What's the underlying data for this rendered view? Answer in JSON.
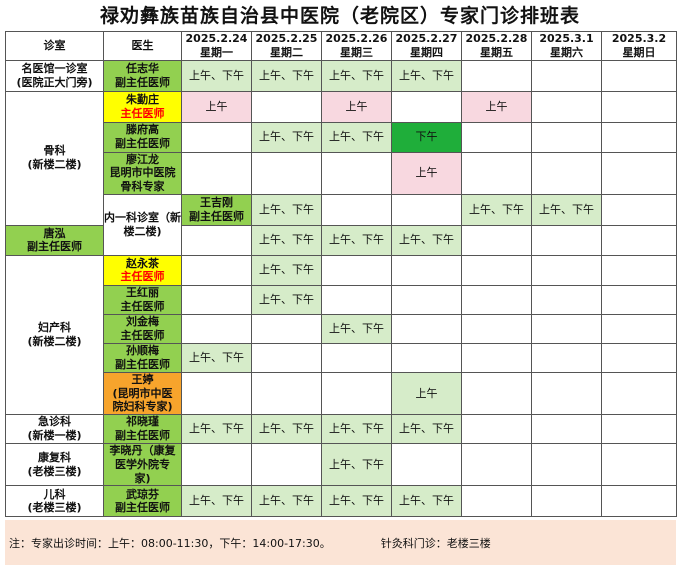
{
  "title": "禄劝彝族苗族自治县中医院（老院区）专家门诊排班表",
  "header": {
    "dept_label": "诊室",
    "doctor_label": "医生",
    "dates": [
      "2025.2.24",
      "2025.2.25",
      "2025.2.26",
      "2025.2.27",
      "2025.2.28",
      "2025.3.1",
      "2025.3.2"
    ],
    "weekdays": [
      "星期一",
      "星期二",
      "星期三",
      "星期四",
      "星期五",
      "星期六",
      "星期日"
    ]
  },
  "departments": [
    {
      "name": [
        "名医馆一诊室",
        "(医院正大门旁)"
      ]
    },
    {
      "name": [
        "骨科",
        "(新楼二楼)"
      ]
    },
    {
      "name": [
        "内一科诊室（新",
        "楼二楼)"
      ]
    },
    {
      "name": [
        "妇产科",
        "(新楼二楼)"
      ]
    },
    {
      "name": [
        "急诊科",
        "(新楼一楼)"
      ]
    },
    {
      "name": [
        "康复科",
        "(老楼三楼)"
      ]
    },
    {
      "name": [
        "儿科",
        "(老楼三楼)"
      ]
    }
  ],
  "doctors": [
    {
      "lines": [
        "任志华",
        "副主任医师"
      ],
      "cells": [
        "上午、下午",
        "上午、下午",
        "上午、下午",
        "上午、下午",
        "",
        "",
        ""
      ]
    },
    {
      "lines": [
        "朱勤庄",
        "主任医师"
      ],
      "cells": [
        "上午",
        "",
        "上午",
        "",
        "上午",
        "",
        ""
      ]
    },
    {
      "lines": [
        "滕府高",
        "副主任医师"
      ],
      "cells": [
        "",
        "上午、下午",
        "上午、下午",
        "下午",
        "",
        "",
        ""
      ]
    },
    {
      "lines": [
        "廖江龙",
        "昆明市中医院",
        "骨科专家"
      ],
      "cells": [
        "",
        "",
        "",
        "上午",
        "",
        "",
        ""
      ]
    },
    {
      "lines": [
        "王吉刚",
        "副主任医师"
      ],
      "cells": [
        "上午、下午",
        "",
        "",
        "上午、下午",
        "上午、下午",
        "",
        ""
      ]
    },
    {
      "lines": [
        "唐泓",
        "副主任医师"
      ],
      "cells": [
        "",
        "上午、下午",
        "上午、下午",
        "上午、下午",
        "",
        "",
        ""
      ]
    },
    {
      "lines": [
        "赵永茶",
        "主任医师"
      ],
      "cells": [
        "",
        "上午、下午",
        "",
        "",
        "",
        "",
        ""
      ]
    },
    {
      "lines": [
        "王红丽",
        "主任医师"
      ],
      "cells": [
        "",
        "上午、下午",
        "",
        "",
        "",
        "",
        ""
      ]
    },
    {
      "lines": [
        "刘金梅",
        "主任医师"
      ],
      "cells": [
        "",
        "",
        "上午、下午",
        "",
        "",
        "",
        ""
      ]
    },
    {
      "lines": [
        "孙顺梅",
        "副主任医师"
      ],
      "cells": [
        "上午、下午",
        "",
        "",
        "",
        "",
        "",
        ""
      ]
    },
    {
      "lines": [
        "王婷",
        "(昆明市中医",
        "院妇科专家)"
      ],
      "cells": [
        "",
        "",
        "",
        "上午",
        "",
        "",
        ""
      ]
    },
    {
      "lines": [
        "祁晓瑾",
        "副主任医师"
      ],
      "cells": [
        "上午、下午",
        "上午、下午",
        "上午、下午",
        "上午、下午",
        "",
        "",
        ""
      ]
    },
    {
      "lines": [
        "李晓丹（康复",
        "医学外院专",
        "家)"
      ],
      "cells": [
        "",
        "",
        "上午、下午",
        "",
        "",
        "",
        ""
      ]
    },
    {
      "lines": [
        "武琼芬",
        "副主任医师"
      ],
      "cells": [
        "上午、下午",
        "上午、下午",
        "上午、下午",
        "上午、下午",
        "",
        "",
        ""
      ]
    }
  ],
  "note": {
    "hours": "注：专家出诊时间：上午：08:00-11:30，下午：14:00-17:30。",
    "acupuncture": "针灸科门诊：老楼三楼"
  },
  "colors": {
    "doctor_green": "#92d050",
    "doctor_yellow": "#ffff00",
    "doctor_orange": "#f7a42c",
    "chief_title_red": "#ff0000",
    "slot_light_green": "#d6ecc9",
    "slot_pink": "#f8d8e0",
    "slot_dark_green": "#1fae3a",
    "note_background": "#fbe4d6"
  }
}
